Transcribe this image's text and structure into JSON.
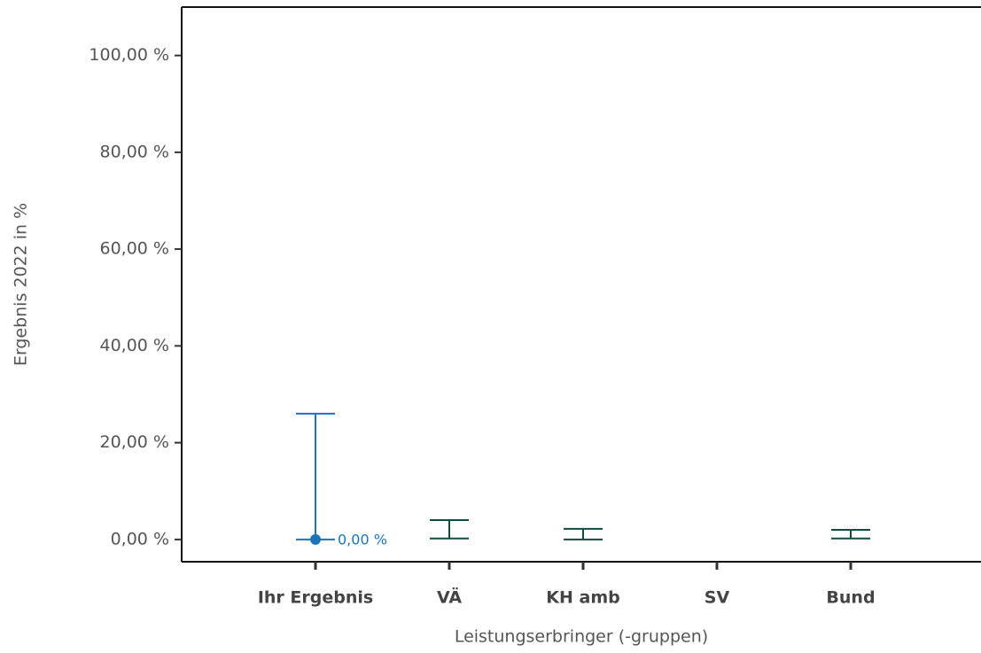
{
  "chart_data": {
    "type": "errorbar",
    "y_label": "Ergebnis 2022 in %",
    "x_label": "Leistungserbringer (-gruppen)",
    "categories": [
      "Ihr Ergebnis",
      "VÄ",
      "KH amb",
      "SV",
      "Bund"
    ],
    "values": [
      0,
      null,
      null,
      null,
      null
    ],
    "value_labels": [
      "0,00 %",
      null,
      null,
      null,
      null
    ],
    "lower": [
      0,
      0.2,
      0,
      null,
      0.2
    ],
    "upper": [
      26,
      4.0,
      2.2,
      null,
      2.0
    ],
    "colors": [
      "#1a75b8",
      "#0d4d40",
      "#0d4d40",
      "#0d4d40",
      "#0d4d40"
    ],
    "ylim": [
      -4.6,
      110
    ],
    "yticks": [
      {
        "value": 0,
        "label": "0,00 %"
      },
      {
        "value": 20,
        "label": "20,00 %"
      },
      {
        "value": 40,
        "label": "40,00 %"
      },
      {
        "value": 60,
        "label": "60,00 %"
      },
      {
        "value": 80,
        "label": "80,00 %"
      },
      {
        "value": 100,
        "label": "100,00 %"
      }
    ]
  }
}
